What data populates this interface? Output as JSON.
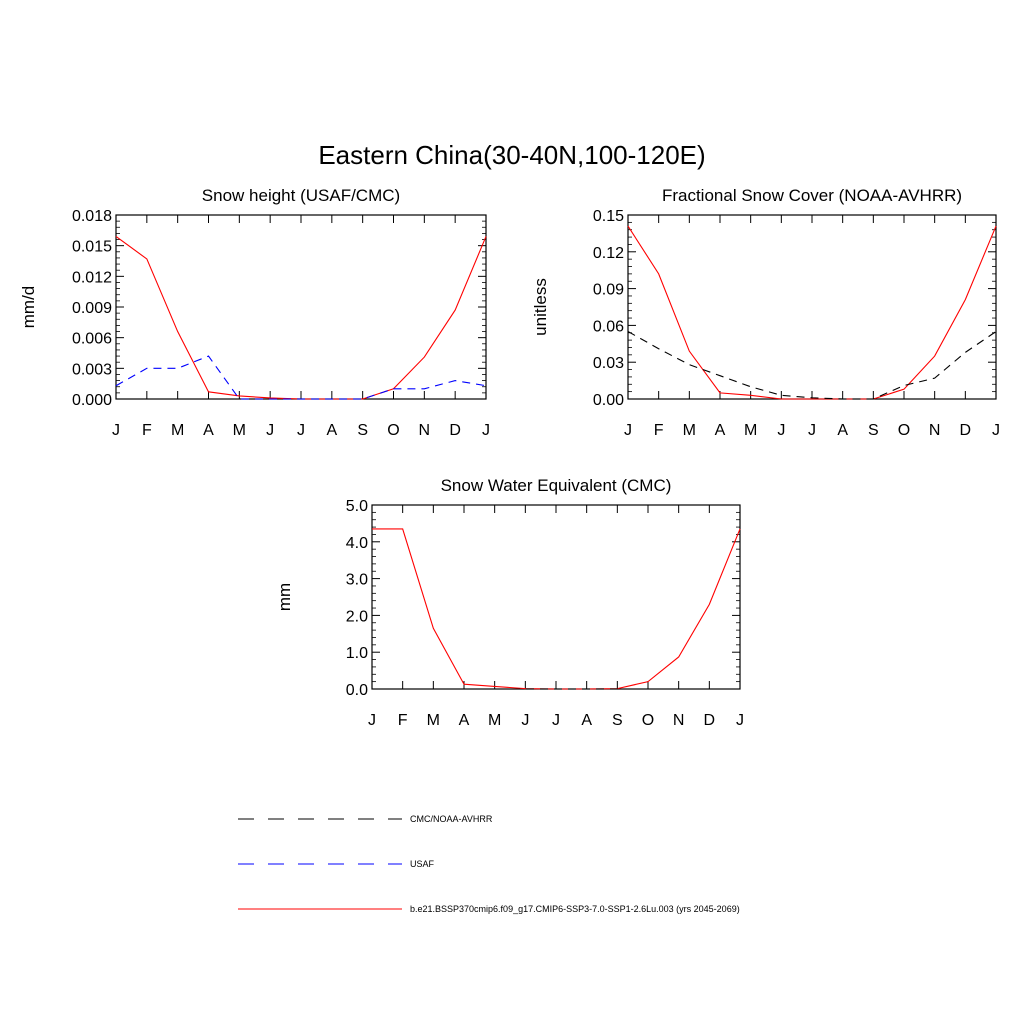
{
  "figure_title": "Eastern China(30-40N,100-120E)",
  "colors": {
    "model": "#ff0000",
    "cmc_noaa": "#000000",
    "usaf": "#0000ff"
  },
  "legend": [
    {
      "label": "CMC/NOAA-AVHRR",
      "color": "#000000",
      "dash": "dashed"
    },
    {
      "label": "USAF",
      "color": "#0000ff",
      "dash": "dashed"
    },
    {
      "label": "b.e21.BSSP370cmip6.f09_g17.CMIP6-SSP3-7.0-SSP1-2.6Lu.003 (yrs 2045-2069)",
      "color": "#ff0000",
      "dash": "solid"
    }
  ],
  "chart_data": [
    {
      "type": "line",
      "title": "Snow height (USAF/CMC)",
      "xlabel": "",
      "ylabel": "mm/d",
      "categories": [
        "J",
        "F",
        "M",
        "A",
        "M",
        "J",
        "J",
        "A",
        "S",
        "O",
        "N",
        "D",
        "J"
      ],
      "ylim": [
        0,
        0.018
      ],
      "yticks": [
        "0.000",
        "0.003",
        "0.006",
        "0.009",
        "0.012",
        "0.015",
        "0.018"
      ],
      "series": [
        {
          "name": "b.e21.BSSP370cmip6.f09_g17.CMIP6-SSP3-7.0-SSP1-2.6Lu.003 (yrs 2045-2069)",
          "color": "#ff0000",
          "dash": "solid",
          "values": [
            0.0159,
            0.0137,
            0.0066,
            0.0007,
            0.0003,
            0.0001,
            0.0,
            0.0,
            0.0,
            0.001,
            0.0041,
            0.0087,
            0.0159
          ]
        },
        {
          "name": "USAF",
          "color": "#0000ff",
          "dash": "dashed",
          "values": [
            0.0013,
            0.003,
            0.003,
            0.0042,
            0.0,
            0.0,
            0.0,
            0.0,
            0.0,
            0.001,
            0.001,
            0.0018,
            0.0013
          ]
        }
      ]
    },
    {
      "type": "line",
      "title": "Fractional Snow Cover (NOAA-AVHRR)",
      "xlabel": "",
      "ylabel": "unitless",
      "categories": [
        "J",
        "F",
        "M",
        "A",
        "M",
        "J",
        "J",
        "A",
        "S",
        "O",
        "N",
        "D",
        "J"
      ],
      "ylim": [
        0,
        0.15
      ],
      "yticks": [
        "0.00",
        "0.03",
        "0.06",
        "0.09",
        "0.12",
        "0.15"
      ],
      "series": [
        {
          "name": "b.e21.BSSP370cmip6.f09_g17.CMIP6-SSP3-7.0-SSP1-2.6Lu.003 (yrs 2045-2069)",
          "color": "#ff0000",
          "dash": "solid",
          "values": [
            0.141,
            0.102,
            0.039,
            0.005,
            0.003,
            0.0,
            0.0,
            0.0,
            0.0,
            0.008,
            0.035,
            0.081,
            0.141
          ]
        },
        {
          "name": "CMC/NOAA-AVHRR",
          "color": "#000000",
          "dash": "dashed",
          "values": [
            0.055,
            0.041,
            0.028,
            0.019,
            0.01,
            0.003,
            0.001,
            0.0,
            0.0,
            0.011,
            0.017,
            0.038,
            0.055
          ]
        }
      ]
    },
    {
      "type": "line",
      "title": "Snow Water Equivalent (CMC)",
      "xlabel": "",
      "ylabel": "mm",
      "categories": [
        "J",
        "F",
        "M",
        "A",
        "M",
        "J",
        "J",
        "A",
        "S",
        "O",
        "N",
        "D",
        "J"
      ],
      "ylim": [
        0,
        5.0
      ],
      "yticks": [
        "0.0",
        "1.0",
        "2.0",
        "3.0",
        "4.0",
        "5.0"
      ],
      "series": [
        {
          "name": "b.e21.BSSP370cmip6.f09_g17.CMIP6-SSP3-7.0-SSP1-2.6Lu.003 (yrs 2045-2069)",
          "color": "#ff0000",
          "dash": "solid",
          "values": [
            4.35,
            4.35,
            1.65,
            0.13,
            0.07,
            0.01,
            0.0,
            0.0,
            0.01,
            0.2,
            0.87,
            2.3,
            4.35
          ]
        },
        {
          "name": "CMC/NOAA-AVHRR",
          "color": "#000000",
          "dash": "dashed",
          "values": [
            0.0,
            0.0,
            0.0,
            0.0,
            0.0,
            0.0,
            0.0,
            0.0,
            0.0,
            0.0,
            0.0,
            0.0,
            0.0
          ]
        }
      ]
    }
  ]
}
